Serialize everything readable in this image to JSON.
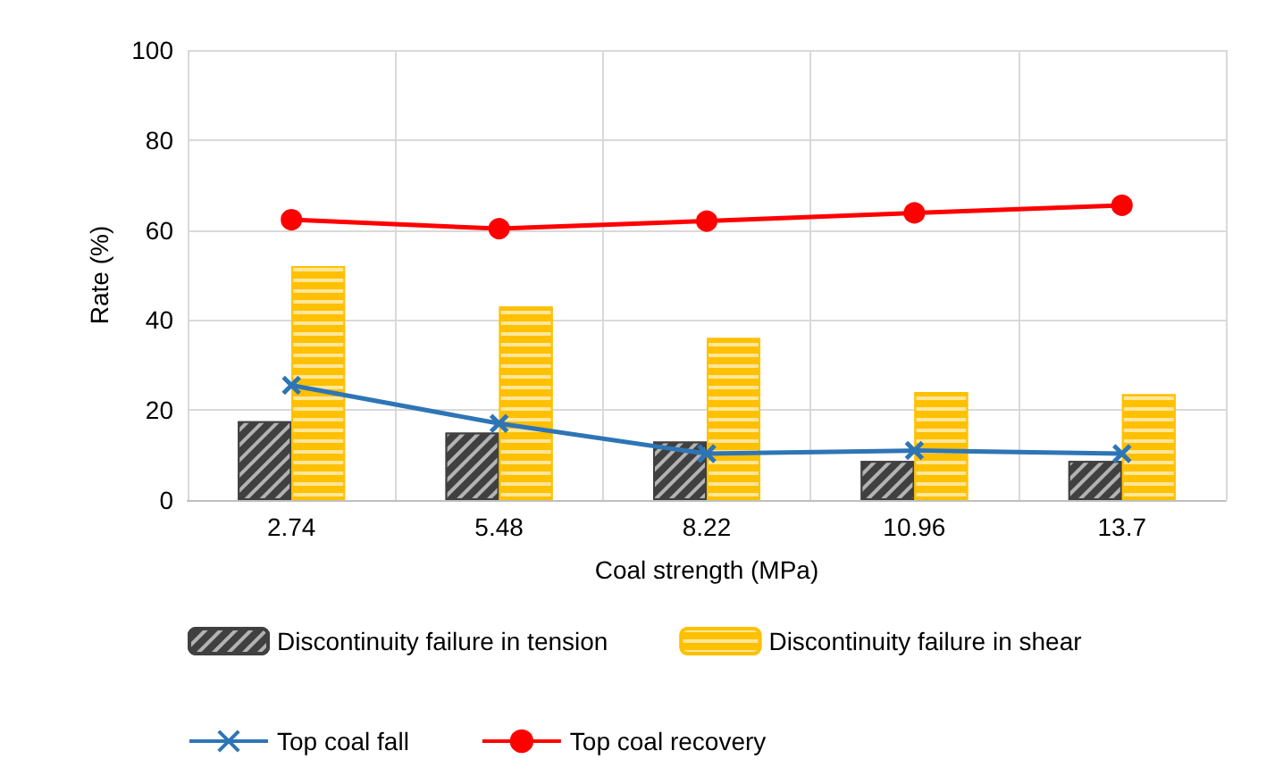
{
  "chart_data": {
    "type": "bar",
    "xlabel": "Coal strength (MPa)",
    "ylabel": "Rate (%)",
    "categories": [
      "2.74",
      "5.48",
      "8.22",
      "10.96",
      "13.7"
    ],
    "series": [
      {
        "name": "Discontinuity failure in tension",
        "color": "#404040",
        "values": [
          17.5,
          15,
          13,
          8.7,
          8.7
        ]
      },
      {
        "name": "Discontinuity failure in shear",
        "color": "#ffc000",
        "values": [
          52,
          43,
          36,
          24,
          23.5
        ]
      },
      {
        "name": "Top coal fall",
        "type": "line",
        "color": "#2e75b6",
        "marker": "cross",
        "values": [
          25.5,
          17,
          10.3,
          11,
          10.3
        ]
      },
      {
        "name": "Top coal recovery",
        "type": "line",
        "color": "#ff0000",
        "marker": "circle",
        "values": [
          62.3,
          60.3,
          62,
          63.8,
          65.5
        ]
      }
    ],
    "ylim": [
      0,
      100
    ],
    "yticks": [
      0,
      20,
      40,
      60,
      80,
      100
    ],
    "grid": true,
    "legend": "bottom"
  }
}
